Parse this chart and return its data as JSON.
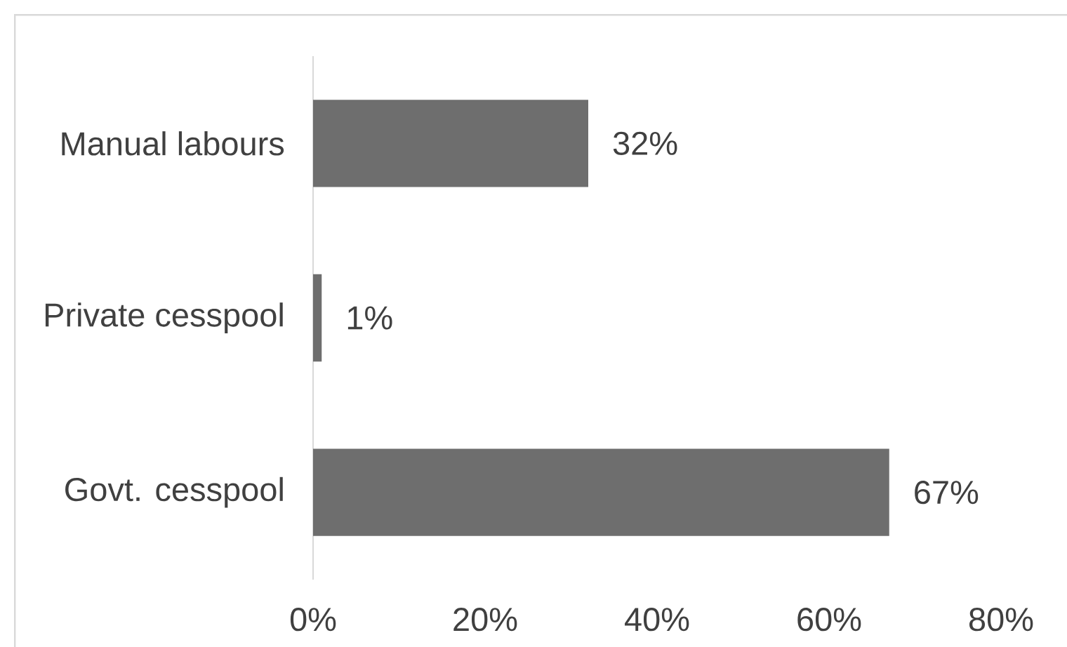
{
  "chart_data": {
    "type": "bar",
    "orientation": "horizontal",
    "categories": [
      "Manual labours",
      "Private cesspool",
      "Govt. cesspool"
    ],
    "values": [
      32,
      1,
      67
    ],
    "value_labels": [
      "32%",
      "1%",
      "67%"
    ],
    "color": "#6e6e6e",
    "xlim": [
      0,
      80
    ],
    "xticks": [
      {
        "value": 0,
        "label": "0%"
      },
      {
        "value": 20,
        "label": "20%"
      },
      {
        "value": 40,
        "label": "40%"
      },
      {
        "value": 60,
        "label": "60%"
      },
      {
        "value": 80,
        "label": "80%"
      }
    ]
  }
}
